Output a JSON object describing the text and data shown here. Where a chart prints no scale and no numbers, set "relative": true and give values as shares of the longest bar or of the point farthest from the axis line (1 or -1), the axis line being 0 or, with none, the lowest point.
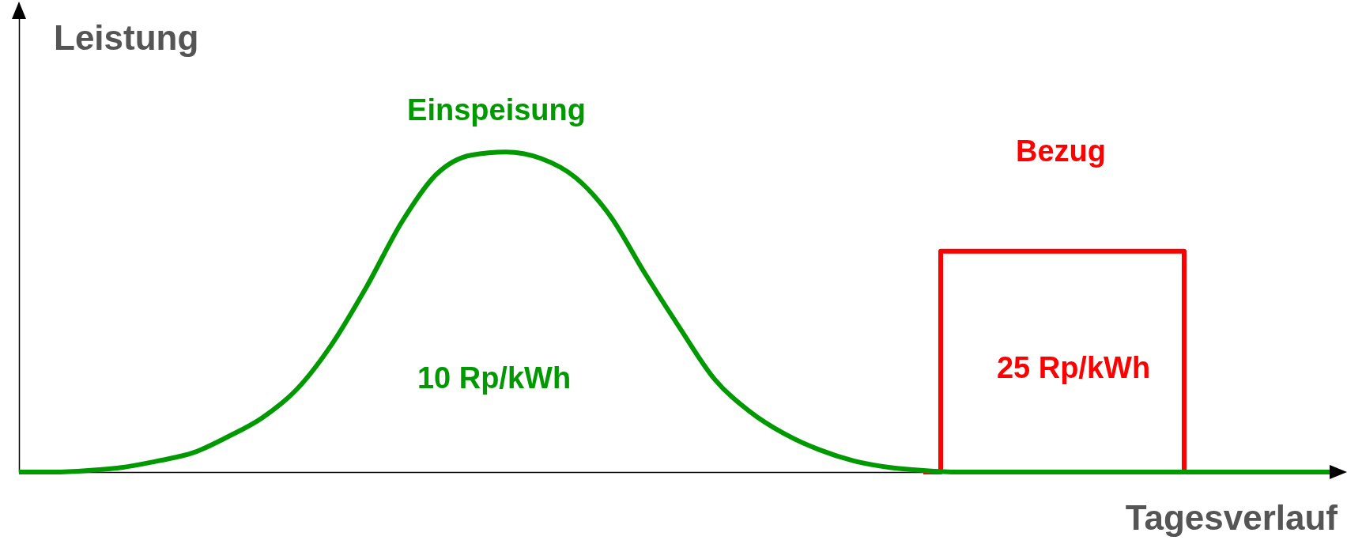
{
  "chart_data": {
    "type": "line",
    "relative": true,
    "xlabel": "Tagesverlauf",
    "ylabel": "Leistung",
    "categories": [
      null,
      null,
      null,
      null,
      null,
      null,
      null,
      null,
      null,
      null,
      null,
      null,
      null,
      null,
      null,
      null,
      null,
      null,
      null,
      null,
      null,
      null,
      null,
      null,
      null,
      null,
      null,
      null,
      null,
      null,
      null,
      null,
      null,
      null,
      null,
      null,
      null,
      null,
      null
    ],
    "series": [
      {
        "name": "Bezug",
        "type": "step",
        "color": "#ff0000",
        "values": [
          null,
          null,
          null,
          null,
          null,
          null,
          null,
          null,
          null,
          null,
          null,
          null,
          null,
          null,
          null,
          null,
          null,
          null,
          null,
          null,
          null,
          null,
          null,
          null,
          null,
          null,
          0,
          0.69,
          0.69,
          0.69,
          0.69,
          0.69,
          0.69,
          0.69,
          0,
          null,
          null,
          null,
          null
        ]
      },
      {
        "name": "Einspeisung",
        "type": "line",
        "color": "#009900",
        "values": [
          0,
          0,
          0.005,
          0.015,
          0.035,
          0.06,
          0.11,
          0.17,
          0.26,
          0.4,
          0.58,
          0.78,
          0.93,
          0.99,
          1,
          0.98,
          0.92,
          0.8,
          0.62,
          0.45,
          0.29,
          0.19,
          0.12,
          0.07,
          0.035,
          0.015,
          0.005,
          0,
          0,
          0,
          0,
          0,
          0,
          0,
          0,
          0,
          0,
          0,
          0
        ]
      }
    ],
    "annotations": [
      "10 Rp/kWh",
      "25 Rp/kWh"
    ]
  }
}
